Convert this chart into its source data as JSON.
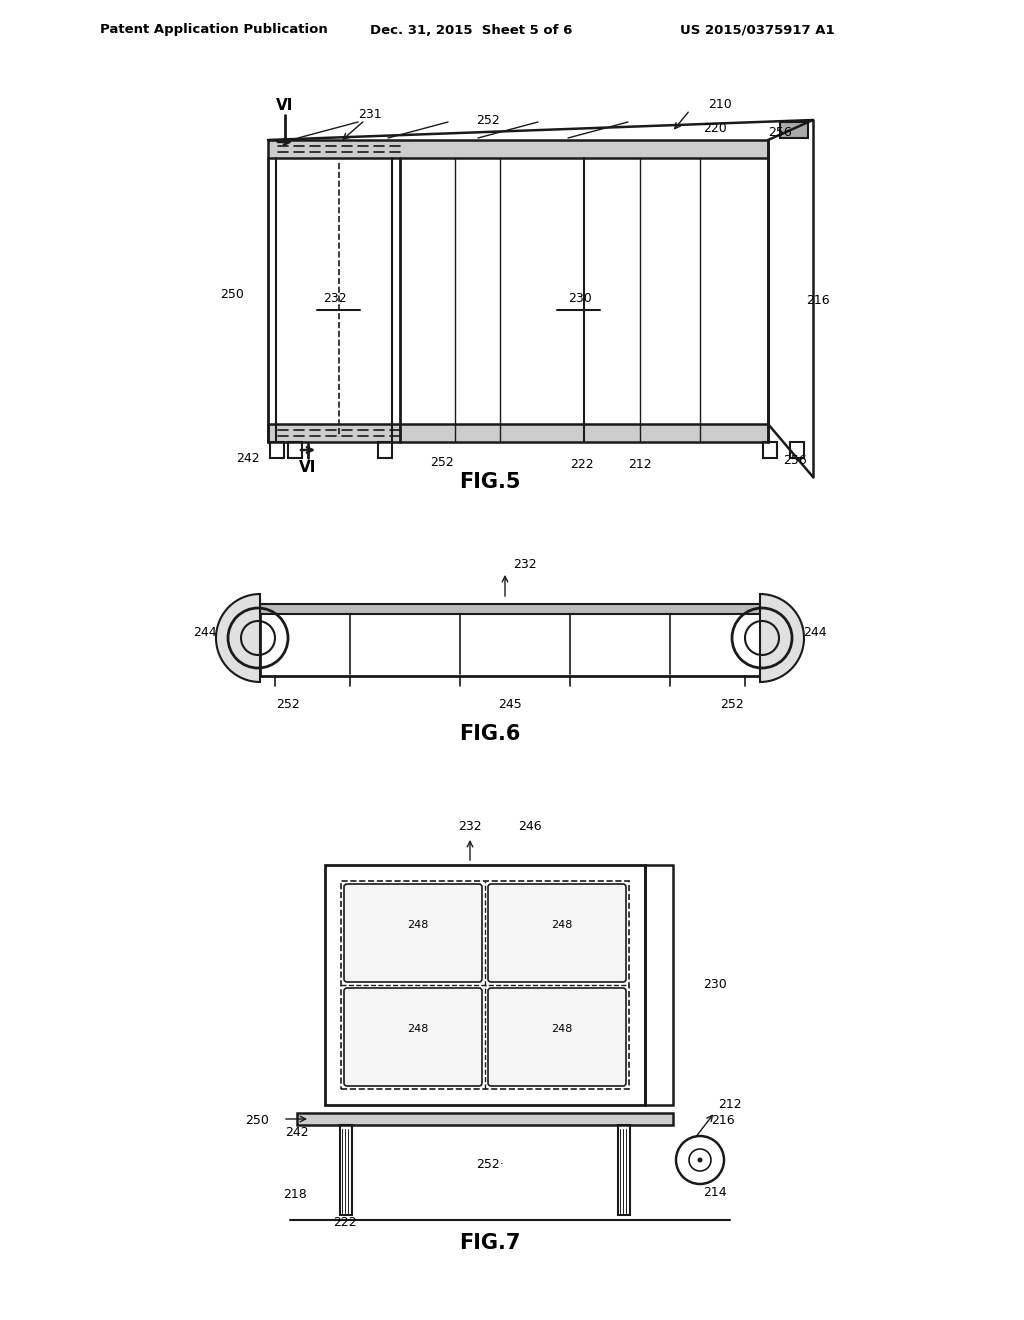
{
  "bg_color": "#ffffff",
  "header_left": "Patent Application Publication",
  "header_mid": "Dec. 31, 2015  Sheet 5 of 6",
  "header_right": "US 2015/0375917 A1",
  "fig5_caption": "FIG.5",
  "fig6_caption": "FIG.6",
  "fig7_caption": "FIG.7",
  "line_color": "#1a1a1a",
  "label_fontsize": 9,
  "caption_fontsize": 15
}
